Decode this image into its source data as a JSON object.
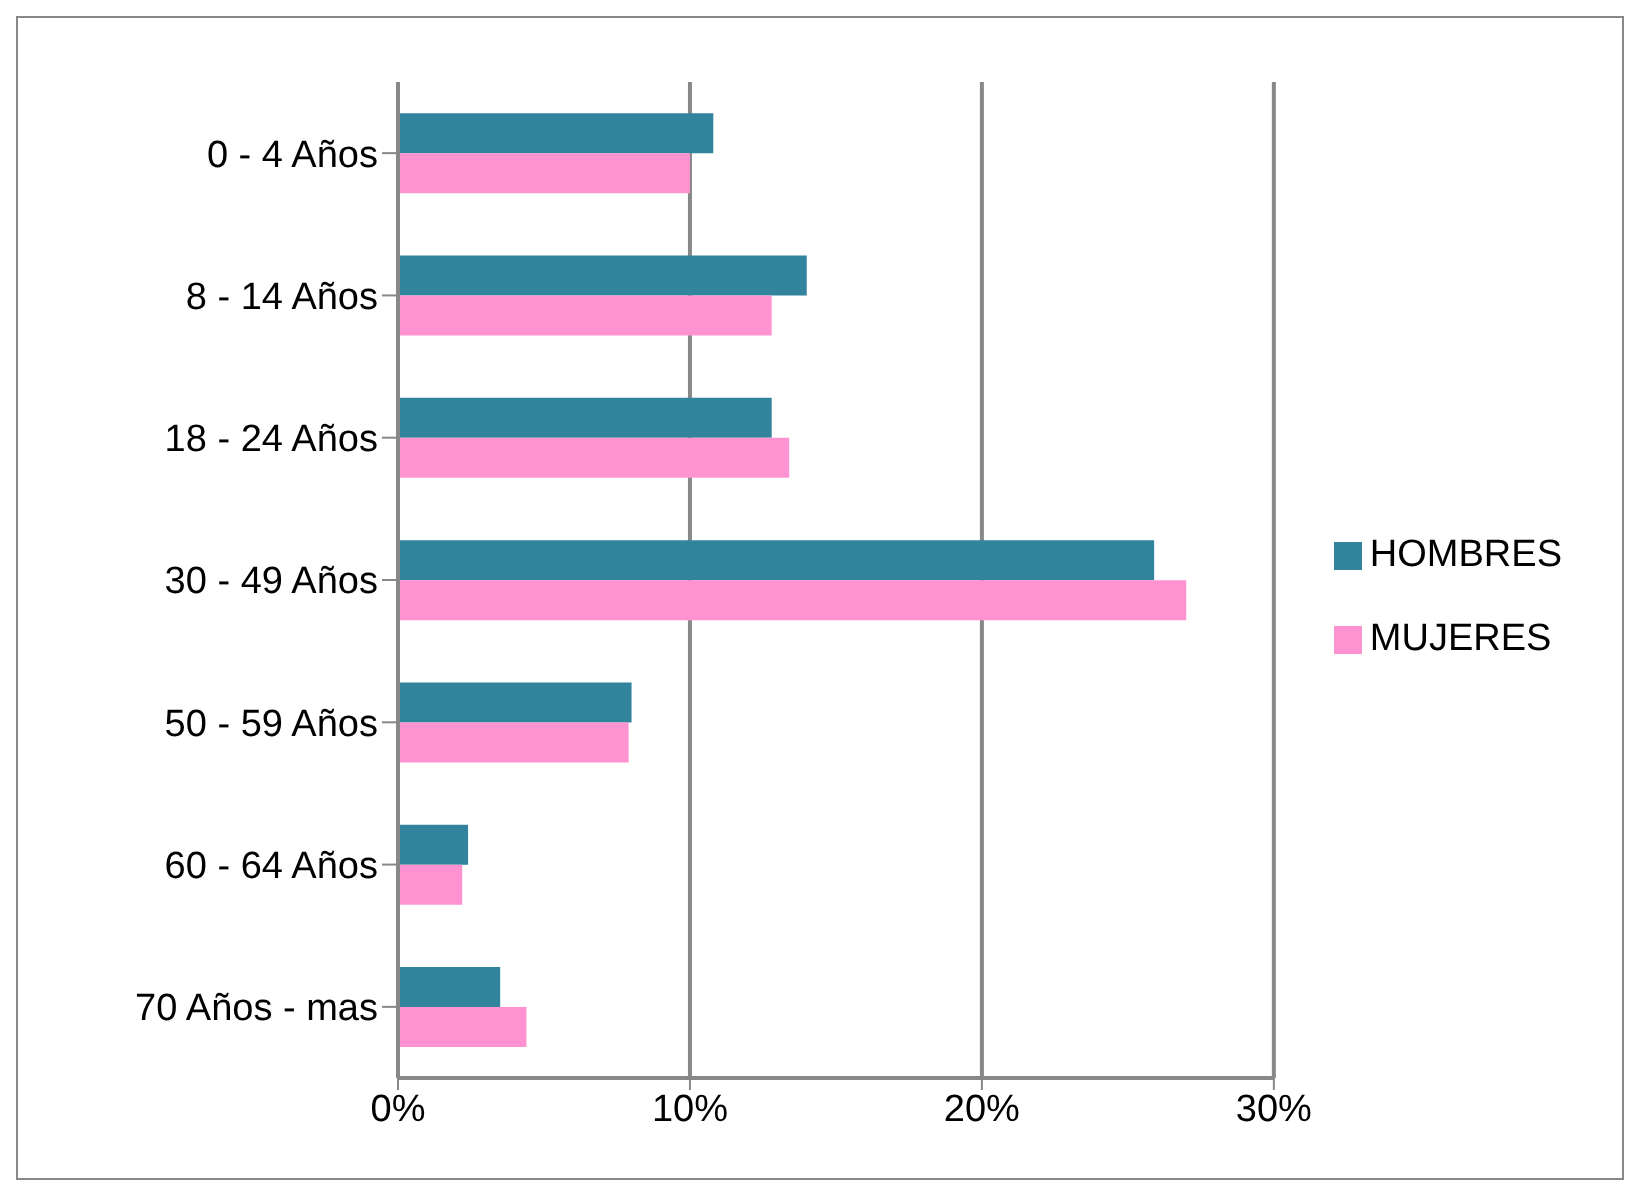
{
  "chart_data": {
    "type": "bar",
    "orientation": "horizontal",
    "categories": [
      "0 - 4 Años",
      "8 - 14 Años",
      "18 - 24 Años",
      "30 - 49 Años",
      "50 - 59 Años",
      "60 - 64 Años",
      "70 Años - mas"
    ],
    "series": [
      {
        "name": "HOMBRES",
        "color": "#31849b",
        "values": [
          10.8,
          14.0,
          12.8,
          25.9,
          8.0,
          2.4,
          3.5
        ]
      },
      {
        "name": "MUJERES",
        "color": "#ff93d2",
        "values": [
          10.0,
          12.8,
          13.4,
          27.0,
          7.9,
          2.2,
          4.4
        ]
      }
    ],
    "xlim": [
      0,
      30
    ],
    "xticks": [
      {
        "value": 0,
        "label": "0%"
      },
      {
        "value": 10,
        "label": "10%"
      },
      {
        "value": 20,
        "label": "20%"
      },
      {
        "value": 30,
        "label": "30%"
      }
    ],
    "grid": "x",
    "legend": "right"
  }
}
